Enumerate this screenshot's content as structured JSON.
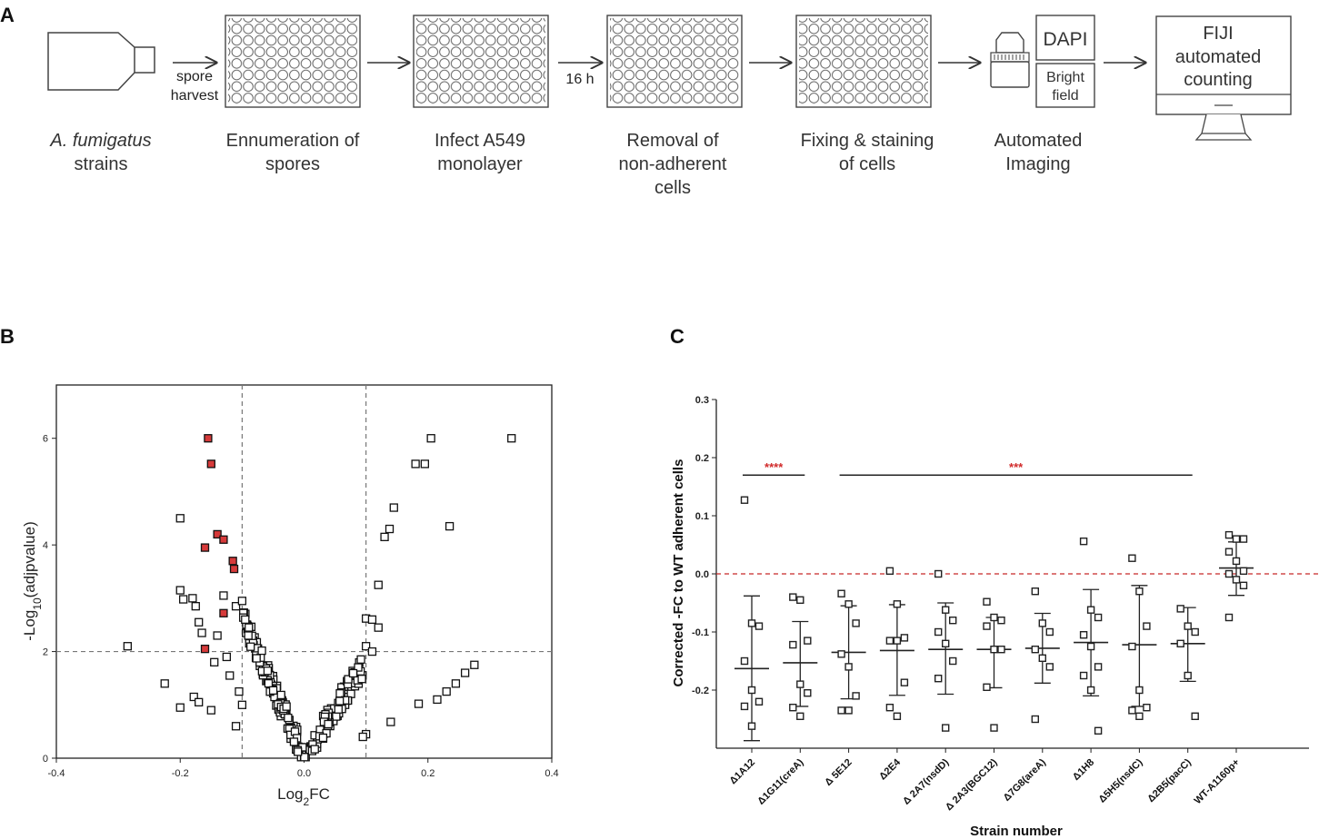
{
  "panel_labels": {
    "a": "A",
    "b": "B",
    "c": "C"
  },
  "workflow": {
    "steps": [
      {
        "line1": "A. fumigatus",
        "line2": "strains",
        "line3": ""
      },
      {
        "line1": "Ennumeration of",
        "line2": "spores",
        "line3": ""
      },
      {
        "line1": "Infect A549",
        "line2": "monolayer",
        "line3": ""
      },
      {
        "line1": "Removal of",
        "line2": "non-adherent",
        "line3": "cells"
      },
      {
        "line1": "Fixing & staining",
        "line2": "of cells",
        "line3": ""
      },
      {
        "line1": "Automated",
        "line2": "Imaging",
        "line3": ""
      }
    ],
    "arrow_spore_1": "spore",
    "arrow_spore_2": "harvest",
    "arrow_time": "16 h",
    "dapi": "DAPI",
    "bright_1": "Bright",
    "bright_2": "field",
    "fiji_1": "FIJI",
    "fiji_2": "automated",
    "fiji_3": "counting"
  },
  "chart_data": [
    {
      "type": "scatter",
      "title": "",
      "xlabel_main": "Log",
      "xlabel_sub": "2",
      "xlabel_end": "FC",
      "ylabel_pre": "-Log",
      "ylabel_sub": "10",
      "ylabel_end": "(adjpvalue)",
      "xlim": [
        -0.4,
        0.4
      ],
      "ylim": [
        0,
        7
      ],
      "x_ticks": [
        "-0.4",
        "-0.2",
        "0.0",
        "0.2",
        "0.4"
      ],
      "y_ticks": [
        "0",
        "2",
        "4",
        "6"
      ],
      "thresholds": {
        "x": [
          -0.1,
          0.1
        ],
        "y": 2
      },
      "highlight_color": "#d63a3a",
      "highlighted": [
        {
          "x": -0.155,
          "y": 6.0
        },
        {
          "x": -0.15,
          "y": 5.52
        },
        {
          "x": -0.14,
          "y": 4.2
        },
        {
          "x": -0.13,
          "y": 4.1
        },
        {
          "x": -0.16,
          "y": 3.95
        },
        {
          "x": -0.115,
          "y": 3.7
        },
        {
          "x": -0.113,
          "y": 3.55
        },
        {
          "x": -0.13,
          "y": 2.72
        },
        {
          "x": -0.16,
          "y": 2.05
        }
      ],
      "points": [
        {
          "x": -0.285,
          "y": 2.1
        },
        {
          "x": -0.225,
          "y": 1.4
        },
        {
          "x": -0.2,
          "y": 4.5
        },
        {
          "x": -0.2,
          "y": 3.15
        },
        {
          "x": -0.195,
          "y": 2.98
        },
        {
          "x": -0.18,
          "y": 3.0
        },
        {
          "x": -0.175,
          "y": 2.85
        },
        {
          "x": -0.17,
          "y": 2.55
        },
        {
          "x": -0.165,
          "y": 2.35
        },
        {
          "x": -0.13,
          "y": 3.05
        },
        {
          "x": -0.14,
          "y": 2.3
        },
        {
          "x": -0.145,
          "y": 1.8
        },
        {
          "x": -0.178,
          "y": 1.15
        },
        {
          "x": -0.17,
          "y": 1.05
        },
        {
          "x": -0.2,
          "y": 0.95
        },
        {
          "x": -0.15,
          "y": 0.9
        },
        {
          "x": -0.125,
          "y": 1.9
        },
        {
          "x": -0.12,
          "y": 1.55
        },
        {
          "x": -0.11,
          "y": 2.85
        },
        {
          "x": -0.1,
          "y": 2.95
        },
        {
          "x": -0.095,
          "y": 2.6
        },
        {
          "x": -0.09,
          "y": 2.3
        },
        {
          "x": -0.105,
          "y": 1.25
        },
        {
          "x": -0.1,
          "y": 1.0
        },
        {
          "x": -0.11,
          "y": 0.6
        },
        {
          "x": 0.1,
          "y": 2.62
        },
        {
          "x": 0.11,
          "y": 2.6
        },
        {
          "x": 0.1,
          "y": 2.1
        },
        {
          "x": 0.12,
          "y": 3.25
        },
        {
          "x": 0.13,
          "y": 4.15
        },
        {
          "x": 0.138,
          "y": 4.3
        },
        {
          "x": 0.145,
          "y": 4.7
        },
        {
          "x": 0.18,
          "y": 5.52
        },
        {
          "x": 0.195,
          "y": 5.52
        },
        {
          "x": 0.205,
          "y": 6.0
        },
        {
          "x": 0.335,
          "y": 6.0
        },
        {
          "x": 0.235,
          "y": 4.35
        },
        {
          "x": 0.275,
          "y": 1.75
        },
        {
          "x": 0.26,
          "y": 1.6
        },
        {
          "x": 0.245,
          "y": 1.4
        },
        {
          "x": 0.23,
          "y": 1.25
        },
        {
          "x": 0.215,
          "y": 1.1
        },
        {
          "x": 0.185,
          "y": 1.02
        },
        {
          "x": 0.14,
          "y": 0.68
        },
        {
          "x": 0.12,
          "y": 2.45
        },
        {
          "x": 0.11,
          "y": 2.0
        },
        {
          "x": 0.1,
          "y": 0.45
        },
        {
          "x": 0.095,
          "y": 0.4
        }
      ]
    },
    {
      "type": "scatter",
      "title": "",
      "xlabel": "Strain number",
      "ylabel": "Corrected -FC to WT adherent cells",
      "ylim": [
        -0.3,
        0.3
      ],
      "y_ticks": [
        "-0.2",
        "-0.1",
        "0.0",
        "0.1",
        "0.2",
        "0.3"
      ],
      "reference_line": 0.0,
      "reference_color": "#c62828",
      "categories": [
        "Δ1A12",
        "Δ1G11(creA)",
        "Δ 5E12",
        "Δ2E4",
        "Δ 2A7(nsdD)",
        "Δ 2A3(BGC12)",
        "Δ7G8(areA)",
        "Δ1H8",
        "Δ5H5(nsdC)",
        "Δ2B5(pacC)",
        "WT-A1160p+"
      ],
      "groups": [
        {
          "name": "Δ1A12",
          "mean": -0.163,
          "sd_low": -0.287,
          "sd_high": -0.038,
          "points": [
            0.127,
            -0.085,
            -0.09,
            -0.15,
            -0.2,
            -0.22,
            -0.228,
            -0.262
          ]
        },
        {
          "name": "Δ1G11(creA)",
          "mean": -0.153,
          "sd_low": -0.228,
          "sd_high": -0.082,
          "points": [
            -0.04,
            -0.045,
            -0.115,
            -0.122,
            -0.19,
            -0.205,
            -0.23,
            -0.245
          ]
        },
        {
          "name": "Δ 5E12",
          "mean": -0.135,
          "sd_low": -0.215,
          "sd_high": -0.055,
          "points": [
            -0.034,
            -0.052,
            -0.085,
            -0.138,
            -0.16,
            -0.21,
            -0.235,
            -0.235
          ]
        },
        {
          "name": "Δ2E4",
          "mean": -0.132,
          "sd_low": -0.209,
          "sd_high": -0.053,
          "points": [
            0.005,
            -0.052,
            -0.11,
            -0.115,
            -0.115,
            -0.187,
            -0.23,
            -0.245
          ]
        },
        {
          "name": "Δ 2A7(nsdD)",
          "mean": -0.13,
          "sd_low": -0.207,
          "sd_high": -0.05,
          "points": [
            0.0,
            -0.062,
            -0.08,
            -0.1,
            -0.12,
            -0.15,
            -0.18,
            -0.265
          ]
        },
        {
          "name": "Δ 2A3(BGC12)",
          "mean": -0.13,
          "sd_low": -0.196,
          "sd_high": -0.075,
          "points": [
            -0.048,
            -0.075,
            -0.08,
            -0.09,
            -0.13,
            -0.13,
            -0.195,
            -0.265
          ]
        },
        {
          "name": "Δ7G8(areA)",
          "mean": -0.128,
          "sd_low": -0.188,
          "sd_high": -0.068,
          "points": [
            -0.03,
            -0.085,
            -0.1,
            -0.13,
            -0.145,
            -0.16,
            -0.25
          ]
        },
        {
          "name": "Δ1H8",
          "mean": -0.118,
          "sd_low": -0.21,
          "sd_high": -0.027,
          "points": [
            0.056,
            -0.062,
            -0.075,
            -0.105,
            -0.125,
            -0.16,
            -0.175,
            -0.2,
            -0.27
          ]
        },
        {
          "name": "Δ5H5(nsdC)",
          "mean": -0.122,
          "sd_low": -0.228,
          "sd_high": -0.02,
          "points": [
            0.027,
            -0.03,
            -0.09,
            -0.125,
            -0.2,
            -0.23,
            -0.235,
            -0.245
          ]
        },
        {
          "name": "Δ2B5(pacC)",
          "mean": -0.12,
          "sd_low": -0.185,
          "sd_high": -0.058,
          "points": [
            -0.06,
            -0.09,
            -0.1,
            -0.12,
            -0.175,
            -0.245
          ]
        },
        {
          "name": "WT-A1160p+",
          "mean": 0.01,
          "sd_low": -0.037,
          "sd_high": 0.055,
          "points": [
            0.067,
            0.06,
            0.06,
            0.038,
            0.022,
            0.005,
            0.0,
            -0.01,
            -0.02,
            -0.075
          ]
        }
      ],
      "significance": [
        {
          "label": "****",
          "from": 0,
          "to": 1,
          "y": 0.17
        },
        {
          "label": "***",
          "from": 2,
          "to": 9,
          "y": 0.17
        }
      ]
    }
  ]
}
